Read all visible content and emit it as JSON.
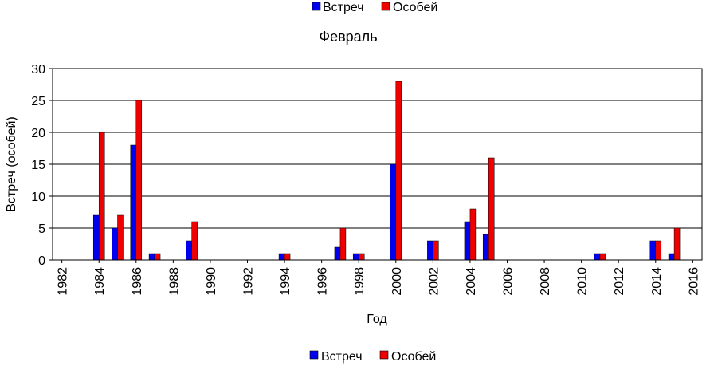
{
  "chart_data": {
    "type": "bar",
    "title": "Февраль",
    "xlabel": "Год",
    "ylabel": "Встреч (особей)",
    "ylim": [
      0,
      30
    ],
    "yticks": [
      0,
      5,
      10,
      15,
      20,
      25,
      30
    ],
    "xlim": [
      1982,
      2016
    ],
    "xtick_labels": [
      "1982",
      "1984",
      "1986",
      "1988",
      "1990",
      "1992",
      "1994",
      "1996",
      "1998",
      "2000",
      "2002",
      "2004",
      "2006",
      "2008",
      "2010",
      "2012",
      "2014",
      "2016"
    ],
    "grid": "horizontal",
    "legend_position": "top and bottom",
    "categories": [
      1984,
      1985,
      1986,
      1987,
      1989,
      1994,
      1997,
      1998,
      2000,
      2002,
      2004,
      2005,
      2011,
      2014,
      2015
    ],
    "series": [
      {
        "name": "Встреч",
        "color": "#0000ee",
        "values": [
          7,
          5,
          18,
          1,
          3,
          1,
          2,
          1,
          15,
          3,
          6,
          4,
          1,
          3,
          1
        ]
      },
      {
        "name": "Особей",
        "color": "#ee0000",
        "values": [
          20,
          7,
          25,
          1,
          6,
          1,
          5,
          1,
          28,
          3,
          8,
          16,
          1,
          3,
          5
        ]
      }
    ]
  }
}
